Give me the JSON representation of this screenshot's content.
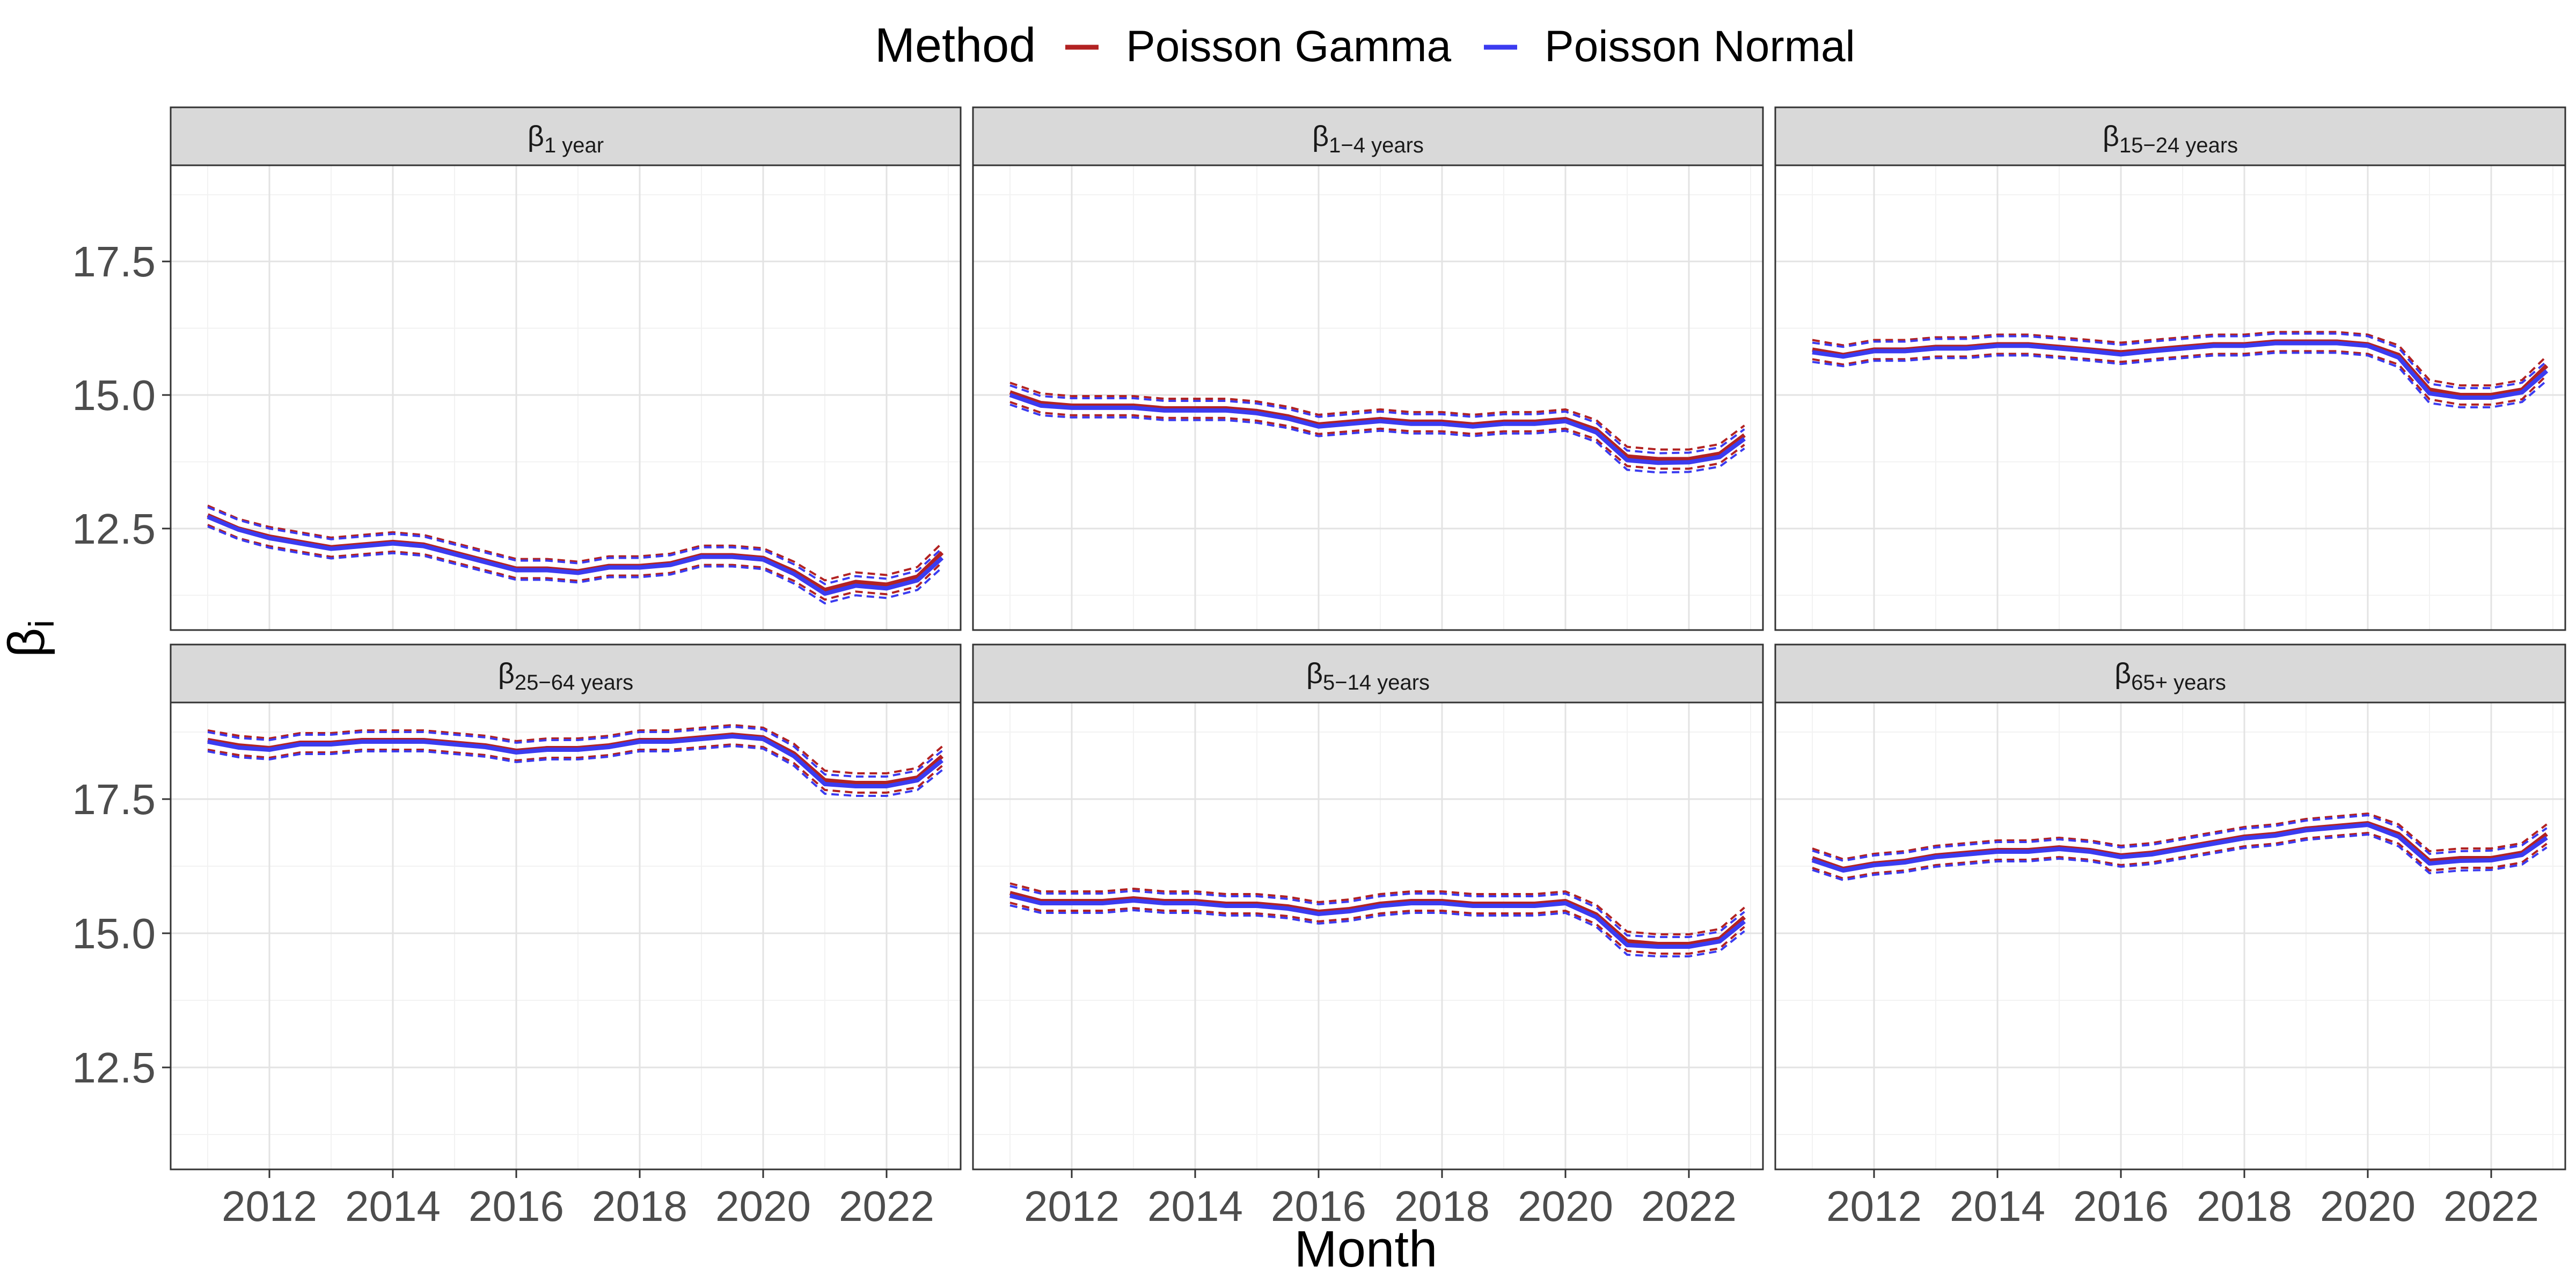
{
  "chart_data": {
    "type": "line",
    "xlabel": "Month",
    "ylabel": "β",
    "ylabel_sub": "i",
    "xlim": [
      2010.4,
      2023.2
    ],
    "ylim": [
      10.6,
      19.3
    ],
    "x_ticks": [
      2012,
      2014,
      2016,
      2018,
      2020,
      2022
    ],
    "y_ticks": [
      12.5,
      15.0,
      17.5
    ],
    "y_tick_labels": [
      "12.5",
      "15.0",
      "17.5"
    ],
    "grid": true,
    "legend": {
      "title": "Method",
      "position": "top",
      "items": [
        {
          "name": "Poisson Gamma",
          "color": "#b22222"
        },
        {
          "name": "Poisson Normal",
          "color": "#3b3bf0"
        }
      ]
    },
    "x": [
      2011.0,
      2011.5,
      2012.0,
      2012.5,
      2013.0,
      2013.5,
      2014.0,
      2014.5,
      2015.0,
      2015.5,
      2016.0,
      2016.5,
      2017.0,
      2017.5,
      2018.0,
      2018.5,
      2019.0,
      2019.5,
      2020.0,
      2020.5,
      2021.0,
      2021.5,
      2022.0,
      2022.5,
      2022.9
    ],
    "band_halfwidth": 0.18,
    "panels": [
      {
        "label_main": "β",
        "label_sub": "1 year",
        "series": [
          {
            "name": "Poisson Gamma",
            "values": [
              12.75,
              12.5,
              12.35,
              12.25,
              12.15,
              12.2,
              12.25,
              12.2,
              12.05,
              11.9,
              11.75,
              11.75,
              11.7,
              11.8,
              11.8,
              11.85,
              12.0,
              12.0,
              11.95,
              11.7,
              11.35,
              11.5,
              11.45,
              11.6,
              12.05
            ]
          },
          {
            "name": "Poisson Normal",
            "values": [
              12.72,
              12.48,
              12.32,
              12.22,
              12.12,
              12.17,
              12.22,
              12.17,
              12.02,
              11.87,
              11.72,
              11.72,
              11.67,
              11.77,
              11.77,
              11.82,
              11.97,
              11.97,
              11.92,
              11.65,
              11.28,
              11.43,
              11.38,
              11.53,
              11.95
            ]
          }
        ]
      },
      {
        "label_main": "β",
        "label_sub": "1−4 years",
        "series": [
          {
            "name": "Poisson Gamma",
            "values": [
              15.05,
              14.85,
              14.8,
              14.8,
              14.8,
              14.75,
              14.75,
              14.75,
              14.7,
              14.6,
              14.45,
              14.5,
              14.55,
              14.5,
              14.5,
              14.45,
              14.5,
              14.5,
              14.55,
              14.35,
              13.85,
              13.8,
              13.8,
              13.9,
              14.25
            ]
          },
          {
            "name": "Poisson Normal",
            "values": [
              15.0,
              14.8,
              14.76,
              14.76,
              14.76,
              14.71,
              14.71,
              14.71,
              14.66,
              14.56,
              14.41,
              14.46,
              14.51,
              14.46,
              14.46,
              14.41,
              14.46,
              14.46,
              14.51,
              14.3,
              13.78,
              13.73,
              13.74,
              13.84,
              14.18
            ]
          }
        ]
      },
      {
        "label_main": "β",
        "label_sub": "15−24 years",
        "series": [
          {
            "name": "Poisson Gamma",
            "values": [
              15.85,
              15.75,
              15.85,
              15.85,
              15.9,
              15.9,
              15.95,
              15.95,
              15.9,
              15.85,
              15.8,
              15.85,
              15.9,
              15.95,
              15.95,
              16.0,
              16.0,
              16.0,
              15.95,
              15.75,
              15.1,
              15.0,
              15.0,
              15.1,
              15.55
            ]
          },
          {
            "name": "Poisson Normal",
            "values": [
              15.8,
              15.72,
              15.82,
              15.82,
              15.87,
              15.87,
              15.92,
              15.92,
              15.87,
              15.82,
              15.76,
              15.82,
              15.87,
              15.92,
              15.92,
              15.97,
              15.97,
              15.97,
              15.92,
              15.7,
              15.03,
              14.95,
              14.95,
              15.05,
              15.45
            ]
          }
        ]
      },
      {
        "label_main": "β",
        "label_sub": "25−64 years",
        "series": [
          {
            "name": "Poisson Gamma",
            "values": [
              18.6,
              18.5,
              18.45,
              18.55,
              18.55,
              18.6,
              18.6,
              18.6,
              18.55,
              18.5,
              18.4,
              18.45,
              18.45,
              18.5,
              18.6,
              18.6,
              18.65,
              18.7,
              18.65,
              18.35,
              17.85,
              17.8,
              17.8,
              17.9,
              18.3
            ]
          },
          {
            "name": "Poisson Normal",
            "values": [
              18.57,
              18.46,
              18.42,
              18.52,
              18.52,
              18.57,
              18.57,
              18.57,
              18.52,
              18.47,
              18.37,
              18.42,
              18.42,
              18.47,
              18.57,
              18.57,
              18.62,
              18.67,
              18.62,
              18.3,
              17.78,
              17.74,
              17.74,
              17.85,
              18.22
            ]
          }
        ]
      },
      {
        "label_main": "β",
        "label_sub": "5−14 years",
        "series": [
          {
            "name": "Poisson Gamma",
            "values": [
              15.75,
              15.6,
              15.6,
              15.6,
              15.65,
              15.6,
              15.6,
              15.55,
              15.55,
              15.5,
              15.4,
              15.45,
              15.55,
              15.6,
              15.6,
              15.55,
              15.55,
              15.55,
              15.6,
              15.35,
              14.85,
              14.8,
              14.8,
              14.9,
              15.3
            ]
          },
          {
            "name": "Poisson Normal",
            "values": [
              15.7,
              15.56,
              15.56,
              15.56,
              15.61,
              15.56,
              15.56,
              15.51,
              15.51,
              15.46,
              15.36,
              15.41,
              15.51,
              15.56,
              15.56,
              15.51,
              15.51,
              15.51,
              15.56,
              15.3,
              14.78,
              14.75,
              14.75,
              14.85,
              15.22
            ]
          }
        ]
      },
      {
        "label_main": "β",
        "label_sub": "65+ years",
        "series": [
          {
            "name": "Poisson Gamma",
            "values": [
              16.4,
              16.2,
              16.3,
              16.35,
              16.45,
              16.5,
              16.55,
              16.55,
              16.6,
              16.55,
              16.45,
              16.5,
              16.6,
              16.7,
              16.8,
              16.85,
              16.95,
              17.0,
              17.05,
              16.85,
              16.35,
              16.4,
              16.4,
              16.5,
              16.85
            ]
          },
          {
            "name": "Poisson Normal",
            "values": [
              16.36,
              16.17,
              16.27,
              16.32,
              16.42,
              16.47,
              16.52,
              16.52,
              16.57,
              16.52,
              16.42,
              16.47,
              16.57,
              16.67,
              16.77,
              16.82,
              16.92,
              16.97,
              17.02,
              16.8,
              16.3,
              16.35,
              16.36,
              16.46,
              16.78
            ]
          }
        ]
      }
    ]
  }
}
